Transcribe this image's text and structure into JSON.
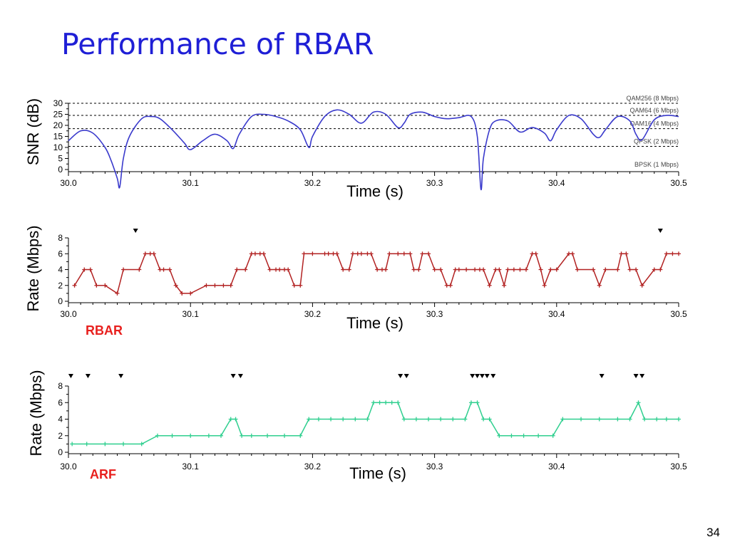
{
  "slide": {
    "title": "Performance of RBAR",
    "page_number": "34"
  },
  "chart_data": [
    {
      "type": "line",
      "ylabel": "SNR (dB)",
      "xlabel": "Time (s)",
      "xlim": [
        30.0,
        30.5
      ],
      "ylim": [
        0,
        30
      ],
      "x_ticks": [
        "30.0",
        "30.1",
        "30.2",
        "30.3",
        "30.4",
        "30.5"
      ],
      "y_ticks": [
        "0",
        "5",
        "10",
        "15",
        "20",
        "25",
        "30"
      ],
      "series_color": "#3a3acc",
      "thresholds": [
        {
          "label": "QAM256 (8 Mbps)",
          "value": 30
        },
        {
          "label": "QAM64 (6 Mbps)",
          "value": 24.5
        },
        {
          "label": "QAM16 (4 Mbps)",
          "value": 18.5
        },
        {
          "label": "QPSK (2 Mbps)",
          "value": 10.5
        },
        {
          "label": "BPSK (1 Mbps)",
          "value": 0
        }
      ],
      "x": [
        30.0,
        30.01,
        30.02,
        30.03,
        30.035,
        30.04,
        30.042,
        30.045,
        30.05,
        30.06,
        30.068,
        30.075,
        30.085,
        30.095,
        30.1,
        30.11,
        30.12,
        30.13,
        30.135,
        30.14,
        30.15,
        30.16,
        30.17,
        30.18,
        30.19,
        30.197,
        30.2,
        30.21,
        30.22,
        30.23,
        30.24,
        30.25,
        30.26,
        30.27,
        30.275,
        30.28,
        30.29,
        30.3,
        30.31,
        30.32,
        30.33,
        30.335,
        30.338,
        30.34,
        30.345,
        30.35,
        30.36,
        30.37,
        30.38,
        30.39,
        30.395,
        30.4,
        30.41,
        30.42,
        30.43,
        30.435,
        30.44,
        30.45,
        30.46,
        30.465,
        30.47,
        30.48,
        30.49,
        30.5
      ],
      "values": [
        13,
        17.5,
        16.5,
        10,
        4,
        -4,
        -8,
        5,
        15,
        23,
        24,
        23,
        18,
        12,
        9,
        13,
        16,
        13,
        9.5,
        16,
        24,
        25,
        24,
        22,
        18,
        10,
        15,
        24,
        27,
        25,
        21,
        26,
        25,
        19,
        21,
        25,
        26,
        24,
        23,
        23.5,
        24,
        15,
        -9,
        5,
        18,
        22,
        22,
        17,
        19,
        16.5,
        13,
        18,
        24.5,
        23,
        16,
        14.5,
        18,
        24,
        22,
        16,
        13.5,
        22.5,
        24.5,
        24
      ]
    },
    {
      "type": "line",
      "legend": "RBAR",
      "ylabel": "Rate (Mbps)",
      "xlabel": "Time (s)",
      "xlim": [
        30.0,
        30.5
      ],
      "ylim": [
        0,
        8
      ],
      "x_ticks": [
        "30.0",
        "30.1",
        "30.2",
        "30.3",
        "30.4",
        "30.5"
      ],
      "y_ticks": [
        "0",
        "2",
        "4",
        "6",
        "8"
      ],
      "series_color": "#b22222",
      "x": [
        30.005,
        30.013,
        30.018,
        30.023,
        30.03,
        30.04,
        30.045,
        30.058,
        30.063,
        30.067,
        30.07,
        30.075,
        30.078,
        30.083,
        30.088,
        30.093,
        30.1,
        30.113,
        30.12,
        30.127,
        30.133,
        30.138,
        30.145,
        30.15,
        30.153,
        30.157,
        30.16,
        30.165,
        30.17,
        30.173,
        30.177,
        30.18,
        30.185,
        30.19,
        30.193,
        30.2,
        30.21,
        30.213,
        30.217,
        30.22,
        30.225,
        30.23,
        30.233,
        30.237,
        30.24,
        30.245,
        30.248,
        30.253,
        30.257,
        30.26,
        30.263,
        30.27,
        30.275,
        30.28,
        30.283,
        30.287,
        30.29,
        30.295,
        30.3,
        30.305,
        30.31,
        30.313,
        30.317,
        30.32,
        30.326,
        30.333,
        30.337,
        30.34,
        30.345,
        30.35,
        30.353,
        30.357,
        30.36,
        30.365,
        30.37,
        30.375,
        30.38,
        30.383,
        30.387,
        30.39,
        30.395,
        30.4,
        30.41,
        30.413,
        30.417,
        30.43,
        30.435,
        30.44,
        30.45,
        30.453,
        30.457,
        30.46,
        30.465,
        30.47,
        30.48,
        30.485,
        30.49,
        30.495,
        30.5
      ],
      "values": [
        2,
        4,
        4,
        2,
        2,
        1,
        4,
        4,
        6,
        6,
        6,
        4,
        4,
        4,
        2,
        1,
        1,
        2,
        2,
        2,
        2,
        4,
        4,
        6,
        6,
        6,
        6,
        4,
        4,
        4,
        4,
        4,
        2,
        2,
        6,
        6,
        6,
        6,
        6,
        6,
        4,
        4,
        6,
        6,
        6,
        6,
        6,
        4,
        4,
        4,
        6,
        6,
        6,
        6,
        4,
        4,
        6,
        6,
        4,
        4,
        2,
        2,
        4,
        4,
        4,
        4,
        4,
        4,
        2,
        4,
        4,
        2,
        4,
        4,
        4,
        4,
        6,
        6,
        4,
        2,
        4,
        4,
        6,
        6,
        4,
        4,
        2,
        4,
        4,
        6,
        6,
        4,
        4,
        2,
        4,
        4,
        6,
        6,
        6
      ],
      "loss_markers_x": [
        30.055,
        30.485
      ]
    },
    {
      "type": "line",
      "legend": "ARF",
      "ylabel": "Rate (Mbps)",
      "xlabel": "Time (s)",
      "xlim": [
        30.0,
        30.5
      ],
      "ylim": [
        0,
        8
      ],
      "x_ticks": [
        "30.0",
        "30.1",
        "30.2",
        "30.3",
        "30.4",
        "30.5"
      ],
      "y_ticks": [
        "0",
        "2",
        "4",
        "6",
        "8"
      ],
      "series_color": "#2fcf8f",
      "x": [
        30.003,
        30.015,
        30.03,
        30.045,
        30.06,
        30.073,
        30.085,
        30.1,
        30.115,
        30.125,
        30.133,
        30.137,
        30.142,
        30.15,
        30.163,
        30.177,
        30.19,
        30.197,
        30.205,
        30.215,
        30.225,
        30.235,
        30.245,
        30.25,
        30.255,
        30.26,
        30.265,
        30.27,
        30.275,
        30.285,
        30.295,
        30.305,
        30.315,
        30.325,
        30.33,
        30.335,
        30.34,
        30.345,
        30.353,
        30.363,
        30.373,
        30.385,
        30.397,
        30.405,
        30.42,
        30.435,
        30.45,
        30.46,
        30.467,
        30.472,
        30.482,
        30.49,
        30.5
      ],
      "values": [
        1,
        1,
        1,
        1,
        1,
        2,
        2,
        2,
        2,
        2,
        4,
        4,
        2,
        2,
        2,
        2,
        2,
        4,
        4,
        4,
        4,
        4,
        4,
        6,
        6,
        6,
        6,
        6,
        4,
        4,
        4,
        4,
        4,
        4,
        6,
        6,
        4,
        4,
        2,
        2,
        2,
        2,
        2,
        4,
        4,
        4,
        4,
        4,
        6,
        4,
        4,
        4,
        4
      ],
      "loss_markers_x": [
        30.002,
        30.016,
        30.043,
        30.135,
        30.141,
        30.272,
        30.277,
        30.331,
        30.335,
        30.339,
        30.343,
        30.348,
        30.437,
        30.465,
        30.47
      ]
    }
  ]
}
